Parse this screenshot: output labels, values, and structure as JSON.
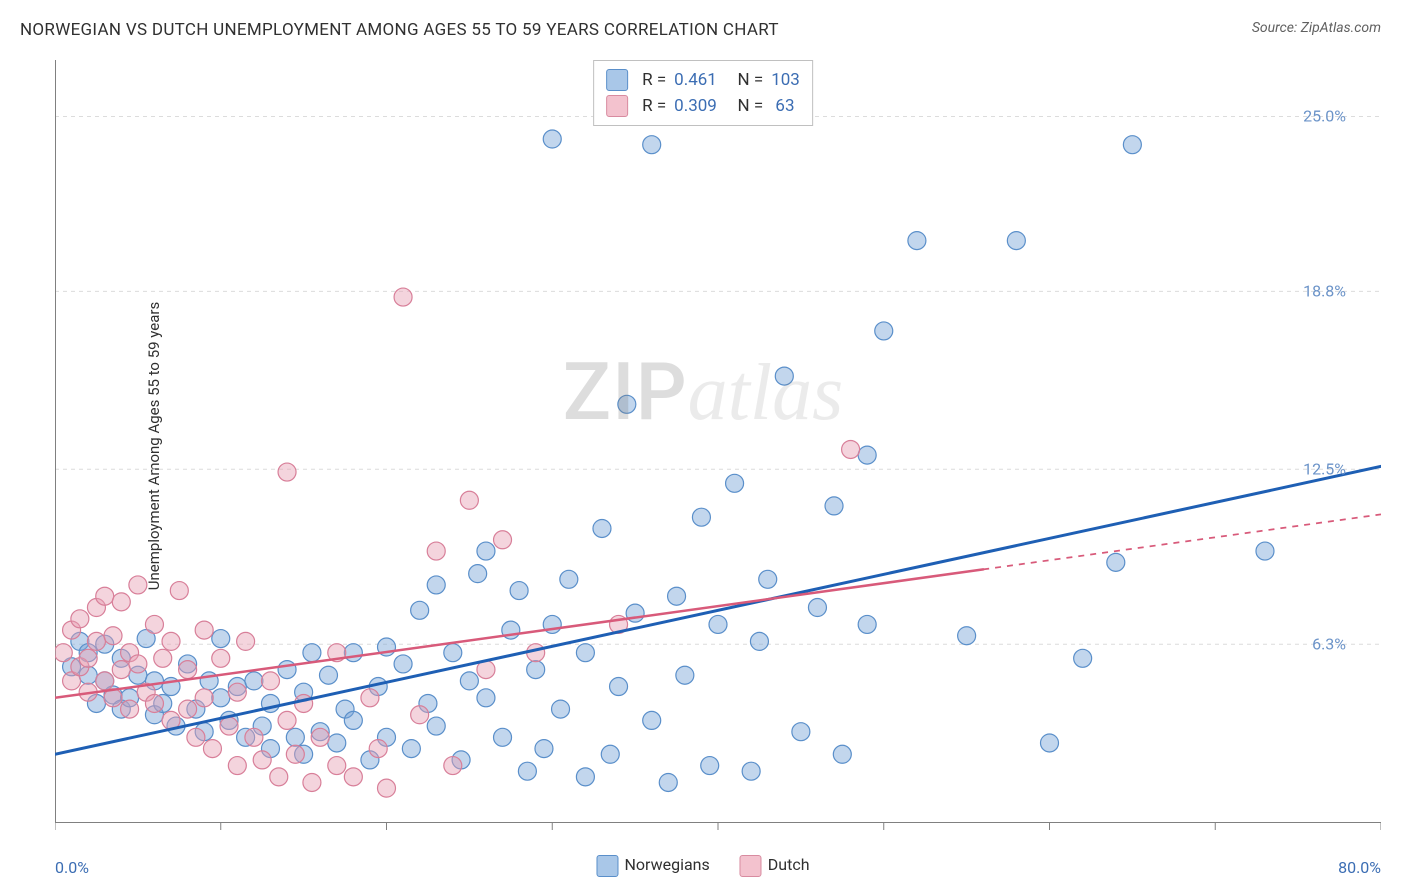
{
  "title": "NORWEGIAN VS DUTCH UNEMPLOYMENT AMONG AGES 55 TO 59 YEARS CORRELATION CHART",
  "source": "Source: ZipAtlas.com",
  "y_axis_label": "Unemployment Among Ages 55 to 59 years",
  "x_axis": {
    "min_label": "0.0%",
    "max_label": "80.0%",
    "min": 0,
    "max": 80,
    "tick_count": 8
  },
  "y_axis": {
    "min": 0,
    "max": 27,
    "ticks": [
      {
        "value": 6.3,
        "label": "6.3%"
      },
      {
        "value": 12.5,
        "label": "12.5%"
      },
      {
        "value": 18.8,
        "label": "18.8%"
      },
      {
        "value": 25.0,
        "label": "25.0%"
      }
    ],
    "grid_color": "#dcdcdc",
    "axis_color": "#808080"
  },
  "watermark": {
    "part1": "ZIP",
    "part2": "atlas"
  },
  "legend_bottom": [
    {
      "label": "Norwegians",
      "fill": "#a9c7e8",
      "stroke": "#5a8fca"
    },
    {
      "label": "Dutch",
      "fill": "#f3c2ce",
      "stroke": "#d88ba0"
    }
  ],
  "stats": [
    {
      "swatch_fill": "#a9c7e8",
      "swatch_stroke": "#5a8fca",
      "r": "0.461",
      "n": "103"
    },
    {
      "swatch_fill": "#f3c2ce",
      "swatch_stroke": "#d88ba0",
      "r": "0.309",
      "n": "63"
    }
  ],
  "series": [
    {
      "name": "Norwegians",
      "marker": {
        "fill": "rgba(120,165,215,0.45)",
        "stroke": "#5a8fca",
        "r": 9
      },
      "trend": {
        "color": "#1e5fb4",
        "width": 3,
        "y_at_xmin": 2.4,
        "y_at_xmax": 12.6,
        "solid_until_x": 80
      },
      "points": [
        [
          1,
          5.5
        ],
        [
          1.5,
          6.4
        ],
        [
          2,
          5.2
        ],
        [
          2,
          6.0
        ],
        [
          2.5,
          4.2
        ],
        [
          3,
          5.0
        ],
        [
          3,
          6.3
        ],
        [
          3.5,
          4.5
        ],
        [
          4,
          5.8
        ],
        [
          4,
          4.0
        ],
        [
          4.5,
          4.4
        ],
        [
          5,
          5.2
        ],
        [
          5.5,
          6.5
        ],
        [
          6,
          3.8
        ],
        [
          6,
          5.0
        ],
        [
          6.5,
          4.2
        ],
        [
          7,
          4.8
        ],
        [
          7.3,
          3.4
        ],
        [
          8,
          5.6
        ],
        [
          8.5,
          4.0
        ],
        [
          9,
          3.2
        ],
        [
          9.3,
          5.0
        ],
        [
          10,
          4.4
        ],
        [
          10,
          6.5
        ],
        [
          10.5,
          3.6
        ],
        [
          11,
          4.8
        ],
        [
          11.5,
          3.0
        ],
        [
          12,
          5.0
        ],
        [
          12.5,
          3.4
        ],
        [
          13,
          4.2
        ],
        [
          13,
          2.6
        ],
        [
          14,
          5.4
        ],
        [
          14.5,
          3.0
        ],
        [
          15,
          4.6
        ],
        [
          15,
          2.4
        ],
        [
          15.5,
          6.0
        ],
        [
          16,
          3.2
        ],
        [
          16.5,
          5.2
        ],
        [
          17,
          2.8
        ],
        [
          17.5,
          4.0
        ],
        [
          18,
          6.0
        ],
        [
          18,
          3.6
        ],
        [
          19,
          2.2
        ],
        [
          19.5,
          4.8
        ],
        [
          20,
          6.2
        ],
        [
          20,
          3.0
        ],
        [
          21,
          5.6
        ],
        [
          21.5,
          2.6
        ],
        [
          22,
          7.5
        ],
        [
          22.5,
          4.2
        ],
        [
          23,
          8.4
        ],
        [
          23,
          3.4
        ],
        [
          24,
          6.0
        ],
        [
          24.5,
          2.2
        ],
        [
          25,
          5.0
        ],
        [
          25.5,
          8.8
        ],
        [
          26,
          4.4
        ],
        [
          26,
          9.6
        ],
        [
          27,
          3.0
        ],
        [
          27.5,
          6.8
        ],
        [
          28,
          8.2
        ],
        [
          28.5,
          1.8
        ],
        [
          29,
          5.4
        ],
        [
          29.5,
          2.6
        ],
        [
          30,
          7.0
        ],
        [
          30,
          24.2
        ],
        [
          30.5,
          4.0
        ],
        [
          31,
          8.6
        ],
        [
          32,
          1.6
        ],
        [
          32,
          6.0
        ],
        [
          33,
          10.4
        ],
        [
          33.5,
          2.4
        ],
        [
          34,
          4.8
        ],
        [
          34.5,
          14.8
        ],
        [
          35,
          7.4
        ],
        [
          36,
          3.6
        ],
        [
          36,
          24.0
        ],
        [
          37,
          1.4
        ],
        [
          37.5,
          8.0
        ],
        [
          38,
          5.2
        ],
        [
          39,
          10.8
        ],
        [
          39.5,
          2.0
        ],
        [
          40,
          7.0
        ],
        [
          41,
          12.0
        ],
        [
          42,
          1.8
        ],
        [
          42.5,
          6.4
        ],
        [
          43,
          8.6
        ],
        [
          44,
          15.8
        ],
        [
          45,
          3.2
        ],
        [
          46,
          7.6
        ],
        [
          47,
          11.2
        ],
        [
          47.5,
          2.4
        ],
        [
          49,
          7.0
        ],
        [
          49,
          13.0
        ],
        [
          50,
          17.4
        ],
        [
          52,
          20.6
        ],
        [
          55,
          6.6
        ],
        [
          58,
          20.6
        ],
        [
          60,
          2.8
        ],
        [
          62,
          5.8
        ],
        [
          64,
          9.2
        ],
        [
          65,
          24.0
        ],
        [
          73,
          9.6
        ]
      ]
    },
    {
      "name": "Dutch",
      "marker": {
        "fill": "rgba(230,160,180,0.45)",
        "stroke": "#d87f99",
        "r": 9
      },
      "trend": {
        "color": "#d85a7a",
        "width": 2.5,
        "y_at_xmin": 4.4,
        "y_at_xmax": 10.9,
        "solid_until_x": 56,
        "dash": "6 6"
      },
      "points": [
        [
          0.5,
          6.0
        ],
        [
          1,
          5.0
        ],
        [
          1,
          6.8
        ],
        [
          1.5,
          5.5
        ],
        [
          1.5,
          7.2
        ],
        [
          2,
          4.6
        ],
        [
          2,
          5.8
        ],
        [
          2.5,
          6.4
        ],
        [
          2.5,
          7.6
        ],
        [
          3,
          5.0
        ],
        [
          3,
          8.0
        ],
        [
          3.5,
          4.4
        ],
        [
          3.5,
          6.6
        ],
        [
          4,
          5.4
        ],
        [
          4,
          7.8
        ],
        [
          4.5,
          4.0
        ],
        [
          4.5,
          6.0
        ],
        [
          5,
          5.6
        ],
        [
          5,
          8.4
        ],
        [
          5.5,
          4.6
        ],
        [
          6,
          7.0
        ],
        [
          6,
          4.2
        ],
        [
          6.5,
          5.8
        ],
        [
          7,
          3.6
        ],
        [
          7,
          6.4
        ],
        [
          7.5,
          8.2
        ],
        [
          8,
          4.0
        ],
        [
          8,
          5.4
        ],
        [
          8.5,
          3.0
        ],
        [
          9,
          6.8
        ],
        [
          9,
          4.4
        ],
        [
          9.5,
          2.6
        ],
        [
          10,
          5.8
        ],
        [
          10.5,
          3.4
        ],
        [
          11,
          2.0
        ],
        [
          11,
          4.6
        ],
        [
          11.5,
          6.4
        ],
        [
          12,
          3.0
        ],
        [
          12.5,
          2.2
        ],
        [
          13,
          5.0
        ],
        [
          13.5,
          1.6
        ],
        [
          14,
          3.6
        ],
        [
          14,
          12.4
        ],
        [
          14.5,
          2.4
        ],
        [
          15,
          4.2
        ],
        [
          15.5,
          1.4
        ],
        [
          16,
          3.0
        ],
        [
          17,
          2.0
        ],
        [
          17,
          6.0
        ],
        [
          18,
          1.6
        ],
        [
          19,
          4.4
        ],
        [
          19.5,
          2.6
        ],
        [
          20,
          1.2
        ],
        [
          21,
          18.6
        ],
        [
          22,
          3.8
        ],
        [
          23,
          9.6
        ],
        [
          24,
          2.0
        ],
        [
          25,
          11.4
        ],
        [
          26,
          5.4
        ],
        [
          27,
          10.0
        ],
        [
          29,
          6.0
        ],
        [
          34,
          7.0
        ],
        [
          48,
          13.2
        ]
      ]
    }
  ],
  "colors": {
    "title": "#303030",
    "source": "#606060",
    "tick_blue": "#3b6db3",
    "tick_light": "#6b93c8",
    "background": "#ffffff"
  }
}
